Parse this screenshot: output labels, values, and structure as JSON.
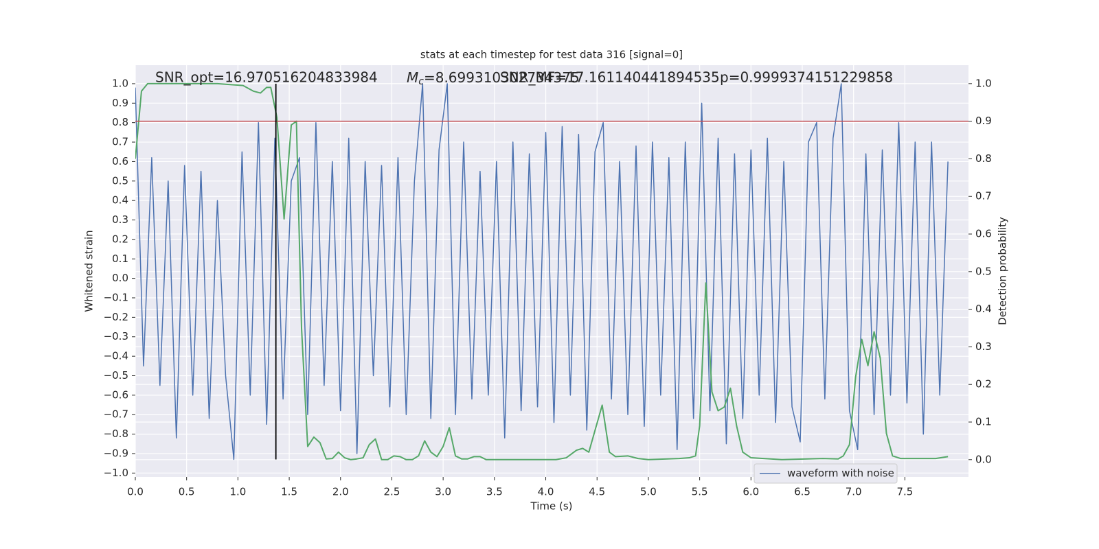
{
  "chart_data": {
    "type": "line",
    "title": "stats at each timestep for test data 316 [signal=0]",
    "xlabel": "Time (s)",
    "ylabel": "Whitened strain",
    "y2label": "Detection probability",
    "annotations": [
      "SNR_opt=16.970516204833984",
      {
        "symbol": "M",
        "subscript": "c",
        "text": "=8.699310302734375"
      },
      "SNR_MF=17.161140441894535",
      "p=0.9999374151229858"
    ],
    "xlim": [
      0,
      8.12
    ],
    "ylim": [
      -1.02,
      1.095
    ],
    "y2lim": [
      -0.046,
      1.049
    ],
    "xticks": [
      {
        "value": 0,
        "label": "0.0"
      },
      {
        "value": 0.5,
        "label": "0.5"
      },
      {
        "value": 1,
        "label": "1.0"
      },
      {
        "value": 1.5,
        "label": "1.5"
      },
      {
        "value": 2,
        "label": "2.0"
      },
      {
        "value": 2.5,
        "label": "2.5"
      },
      {
        "value": 3,
        "label": "3.0"
      },
      {
        "value": 3.5,
        "label": "3.5"
      },
      {
        "value": 4,
        "label": "4.0"
      },
      {
        "value": 4.5,
        "label": "4.5"
      },
      {
        "value": 5,
        "label": "5.0"
      },
      {
        "value": 5.5,
        "label": "5.5"
      },
      {
        "value": 6,
        "label": "6.0"
      },
      {
        "value": 6.5,
        "label": "6.5"
      },
      {
        "value": 7,
        "label": "7.0"
      },
      {
        "value": 7.5,
        "label": "7.5"
      }
    ],
    "yticks": [
      {
        "value": -1,
        "label": "−1.0"
      },
      {
        "value": -0.9,
        "label": "−0.9"
      },
      {
        "value": -0.8,
        "label": "−0.8"
      },
      {
        "value": -0.7,
        "label": "−0.7"
      },
      {
        "value": -0.6,
        "label": "−0.6"
      },
      {
        "value": -0.5,
        "label": "−0.5"
      },
      {
        "value": -0.4,
        "label": "−0.4"
      },
      {
        "value": -0.3,
        "label": "−0.3"
      },
      {
        "value": -0.2,
        "label": "−0.2"
      },
      {
        "value": -0.1,
        "label": "−0.1"
      },
      {
        "value": 0,
        "label": "0.0"
      },
      {
        "value": 0.1,
        "label": "0.1"
      },
      {
        "value": 0.2,
        "label": "0.2"
      },
      {
        "value": 0.3,
        "label": "0.3"
      },
      {
        "value": 0.4,
        "label": "0.4"
      },
      {
        "value": 0.5,
        "label": "0.5"
      },
      {
        "value": 0.6,
        "label": "0.6"
      },
      {
        "value": 0.7,
        "label": "0.7"
      },
      {
        "value": 0.8,
        "label": "0.8"
      },
      {
        "value": 0.9,
        "label": "0.9"
      },
      {
        "value": 1,
        "label": "1.0"
      }
    ],
    "y2ticks": [
      {
        "value": 0,
        "label": "0.0"
      },
      {
        "value": 0.1,
        "label": "0.1"
      },
      {
        "value": 0.2,
        "label": "0.2"
      },
      {
        "value": 0.3,
        "label": "0.3"
      },
      {
        "value": 0.4,
        "label": "0.4"
      },
      {
        "value": 0.5,
        "label": "0.5"
      },
      {
        "value": 0.6,
        "label": "0.6"
      },
      {
        "value": 0.7,
        "label": "0.7"
      },
      {
        "value": 0.8,
        "label": "0.8"
      },
      {
        "value": 0.9,
        "label": "0.9"
      },
      {
        "value": 1,
        "label": "1.0"
      }
    ],
    "grid": true,
    "legend": "lower right",
    "series": [
      {
        "name": "waveform with noise",
        "color": "#4c72b0",
        "x": [
          0,
          0.08,
          0.16,
          0.24,
          0.32,
          0.4,
          0.48,
          0.56,
          0.64,
          0.72,
          0.8,
          0.88,
          0.96,
          1.04,
          1.12,
          1.2,
          1.28,
          1.36,
          1.44,
          1.52,
          1.6,
          1.68,
          1.76,
          1.84,
          1.92,
          2,
          2.08,
          2.16,
          2.24,
          2.32,
          2.4,
          2.48,
          2.56,
          2.64,
          2.72,
          2.8,
          2.88,
          2.96,
          3.04,
          3.12,
          3.2,
          3.28,
          3.36,
          3.44,
          3.52,
          3.6,
          3.68,
          3.76,
          3.84,
          3.92,
          4,
          4.08,
          4.16,
          4.24,
          4.32,
          4.4,
          4.48,
          4.56,
          4.64,
          4.72,
          4.8,
          4.88,
          4.96,
          5.04,
          5.12,
          5.2,
          5.28,
          5.36,
          5.44,
          5.52,
          5.6,
          5.68,
          5.76,
          5.84,
          5.92,
          6,
          6.08,
          6.16,
          6.24,
          6.32,
          6.4,
          6.48,
          6.56,
          6.64,
          6.72,
          6.8,
          6.88,
          6.96,
          7.04,
          7.12,
          7.2,
          7.28,
          7.36,
          7.44,
          7.52,
          7.6,
          7.68,
          7.76,
          7.84,
          7.92
        ],
        "values": [
          0.98,
          -0.45,
          0.62,
          -0.55,
          0.5,
          -0.82,
          0.58,
          -0.6,
          0.55,
          -0.72,
          0.4,
          -0.5,
          -0.93,
          0.65,
          -0.6,
          0.8,
          -0.75,
          0.72,
          -0.62,
          0.5,
          0.62,
          -0.7,
          0.8,
          -0.55,
          0.6,
          -0.68,
          0.72,
          -0.9,
          0.6,
          -0.5,
          0.58,
          -0.66,
          0.62,
          -0.7,
          0.5,
          1.0,
          -0.72,
          0.66,
          1.0,
          -0.7,
          0.7,
          -0.62,
          0.55,
          -0.6,
          0.6,
          -0.82,
          0.7,
          -0.68,
          0.64,
          -0.66,
          0.75,
          -0.74,
          0.78,
          -0.6,
          0.74,
          -0.78,
          0.65,
          0.8,
          -0.62,
          0.6,
          -0.7,
          0.68,
          -0.76,
          0.7,
          -0.6,
          0.62,
          -0.88,
          0.7,
          -0.72,
          0.9,
          -0.68,
          0.72,
          -0.85,
          0.64,
          -0.72,
          0.66,
          -0.6,
          0.72,
          -0.74,
          0.6,
          -0.66,
          -0.84,
          0.7,
          0.8,
          -0.62,
          0.72,
          1.0,
          -0.68,
          -0.88,
          0.64,
          -0.7,
          0.66,
          -0.6,
          0.8,
          -0.64,
          0.7,
          -0.8,
          0.7,
          -0.6,
          0.6
        ]
      },
      {
        "color": "#55a868",
        "axis": "y2",
        "x": [
          0,
          0.06,
          0.12,
          0.2,
          0.5,
          0.8,
          1.05,
          1.15,
          1.22,
          1.28,
          1.32,
          1.38,
          1.45,
          1.52,
          1.57,
          1.62,
          1.68,
          1.74,
          1.8,
          1.86,
          1.92,
          1.98,
          2.04,
          2.1,
          2.16,
          2.22,
          2.28,
          2.34,
          2.4,
          2.46,
          2.52,
          2.58,
          2.64,
          2.7,
          2.76,
          2.82,
          2.88,
          2.94,
          3.0,
          3.06,
          3.12,
          3.18,
          3.24,
          3.3,
          3.36,
          3.42,
          3.5,
          3.8,
          4.1,
          4.2,
          4.3,
          4.36,
          4.42,
          4.55,
          4.62,
          4.68,
          4.8,
          4.9,
          5.0,
          5.3,
          5.4,
          5.46,
          5.5,
          5.56,
          5.62,
          5.68,
          5.74,
          5.8,
          5.86,
          5.92,
          6.0,
          6.3,
          6.7,
          6.85,
          6.9,
          6.96,
          7.02,
          7.08,
          7.14,
          7.2,
          7.26,
          7.32,
          7.38,
          7.46,
          7.6,
          7.8,
          7.92
        ],
        "values": [
          0.8,
          0.98,
          1.0,
          1.0,
          1.0,
          1.0,
          0.995,
          0.98,
          0.975,
          0.99,
          0.99,
          0.91,
          0.64,
          0.89,
          0.9,
          0.35,
          0.035,
          0.06,
          0.045,
          0.002,
          0.003,
          0.02,
          0.005,
          0.0,
          0.002,
          0.005,
          0.04,
          0.055,
          0.0,
          0.0,
          0.01,
          0.008,
          0.0,
          0.0,
          0.01,
          0.05,
          0.02,
          0.008,
          0.035,
          0.085,
          0.01,
          0.002,
          0.002,
          0.008,
          0.008,
          0.0,
          0.0,
          0.0,
          0.0,
          0.005,
          0.025,
          0.03,
          0.02,
          0.145,
          0.02,
          0.008,
          0.01,
          0.003,
          0.0,
          0.003,
          0.005,
          0.01,
          0.09,
          0.47,
          0.18,
          0.13,
          0.14,
          0.19,
          0.09,
          0.02,
          0.005,
          0.0,
          0.003,
          0.002,
          0.01,
          0.04,
          0.22,
          0.32,
          0.25,
          0.34,
          0.27,
          0.07,
          0.01,
          0.003,
          0.003,
          0.003,
          0.008
        ]
      }
    ],
    "hlines": [
      {
        "y2": 0.9,
        "color": "#c44e52"
      }
    ],
    "vlines": [
      {
        "x": 1.37,
        "ymin": -0.93,
        "ymax": 1.0,
        "color": "#000000"
      }
    ]
  }
}
